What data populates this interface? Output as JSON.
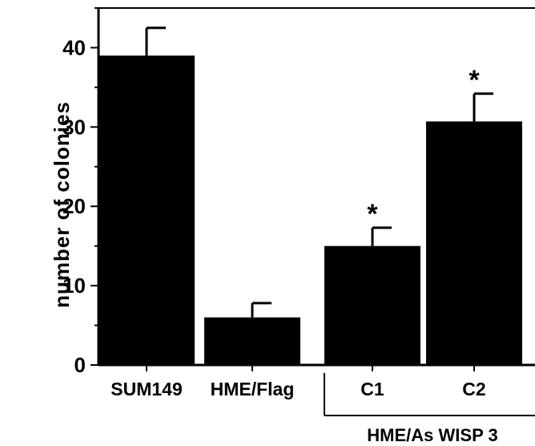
{
  "chart_data": {
    "type": "bar",
    "title": "",
    "xlabel": "",
    "ylabel": "number  of  colonies",
    "categories": [
      "SUM149",
      "HME/Flag",
      "C1",
      "C2"
    ],
    "values": [
      39,
      6,
      15,
      30.7
    ],
    "errors": [
      3.5,
      1.8,
      2.3,
      3.5
    ],
    "significance": [
      "",
      "",
      "*",
      "*"
    ],
    "group_label": "HME/As WISP 3",
    "group_members": [
      "C1",
      "C2"
    ],
    "ylim": [
      0,
      45
    ],
    "yticks": [
      0,
      10,
      20,
      30,
      40
    ],
    "grid": false,
    "legend": "none",
    "bar_color": "#000000"
  }
}
